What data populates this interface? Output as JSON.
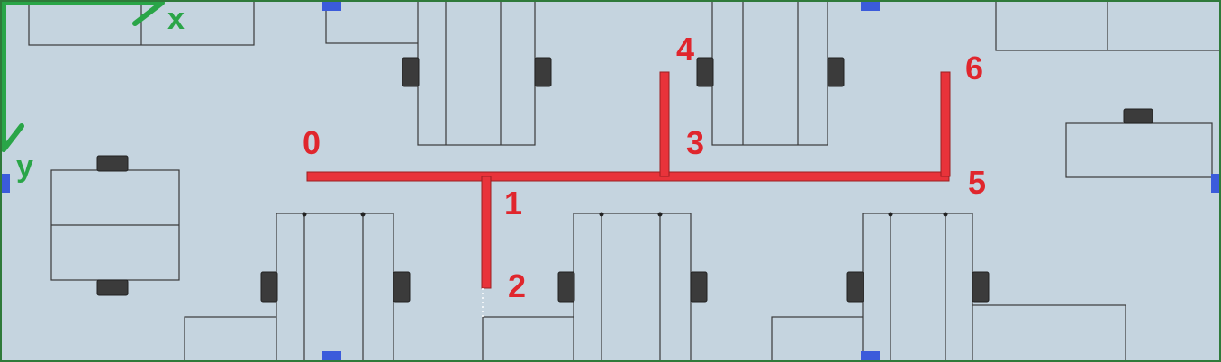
{
  "axes": {
    "x_label": "x",
    "y_label": "y"
  },
  "path_nodes": [
    {
      "label": "0"
    },
    {
      "label": "1"
    },
    {
      "label": "2"
    },
    {
      "label": "3"
    },
    {
      "label": "4"
    },
    {
      "label": "5"
    },
    {
      "label": "6"
    }
  ],
  "colors": {
    "floor": "#c5d4df",
    "path": "#e8333a",
    "labels": "#e0262d",
    "axis": "#2aa548",
    "markers": "#3b5bdb",
    "border": "#2f7a3a"
  }
}
